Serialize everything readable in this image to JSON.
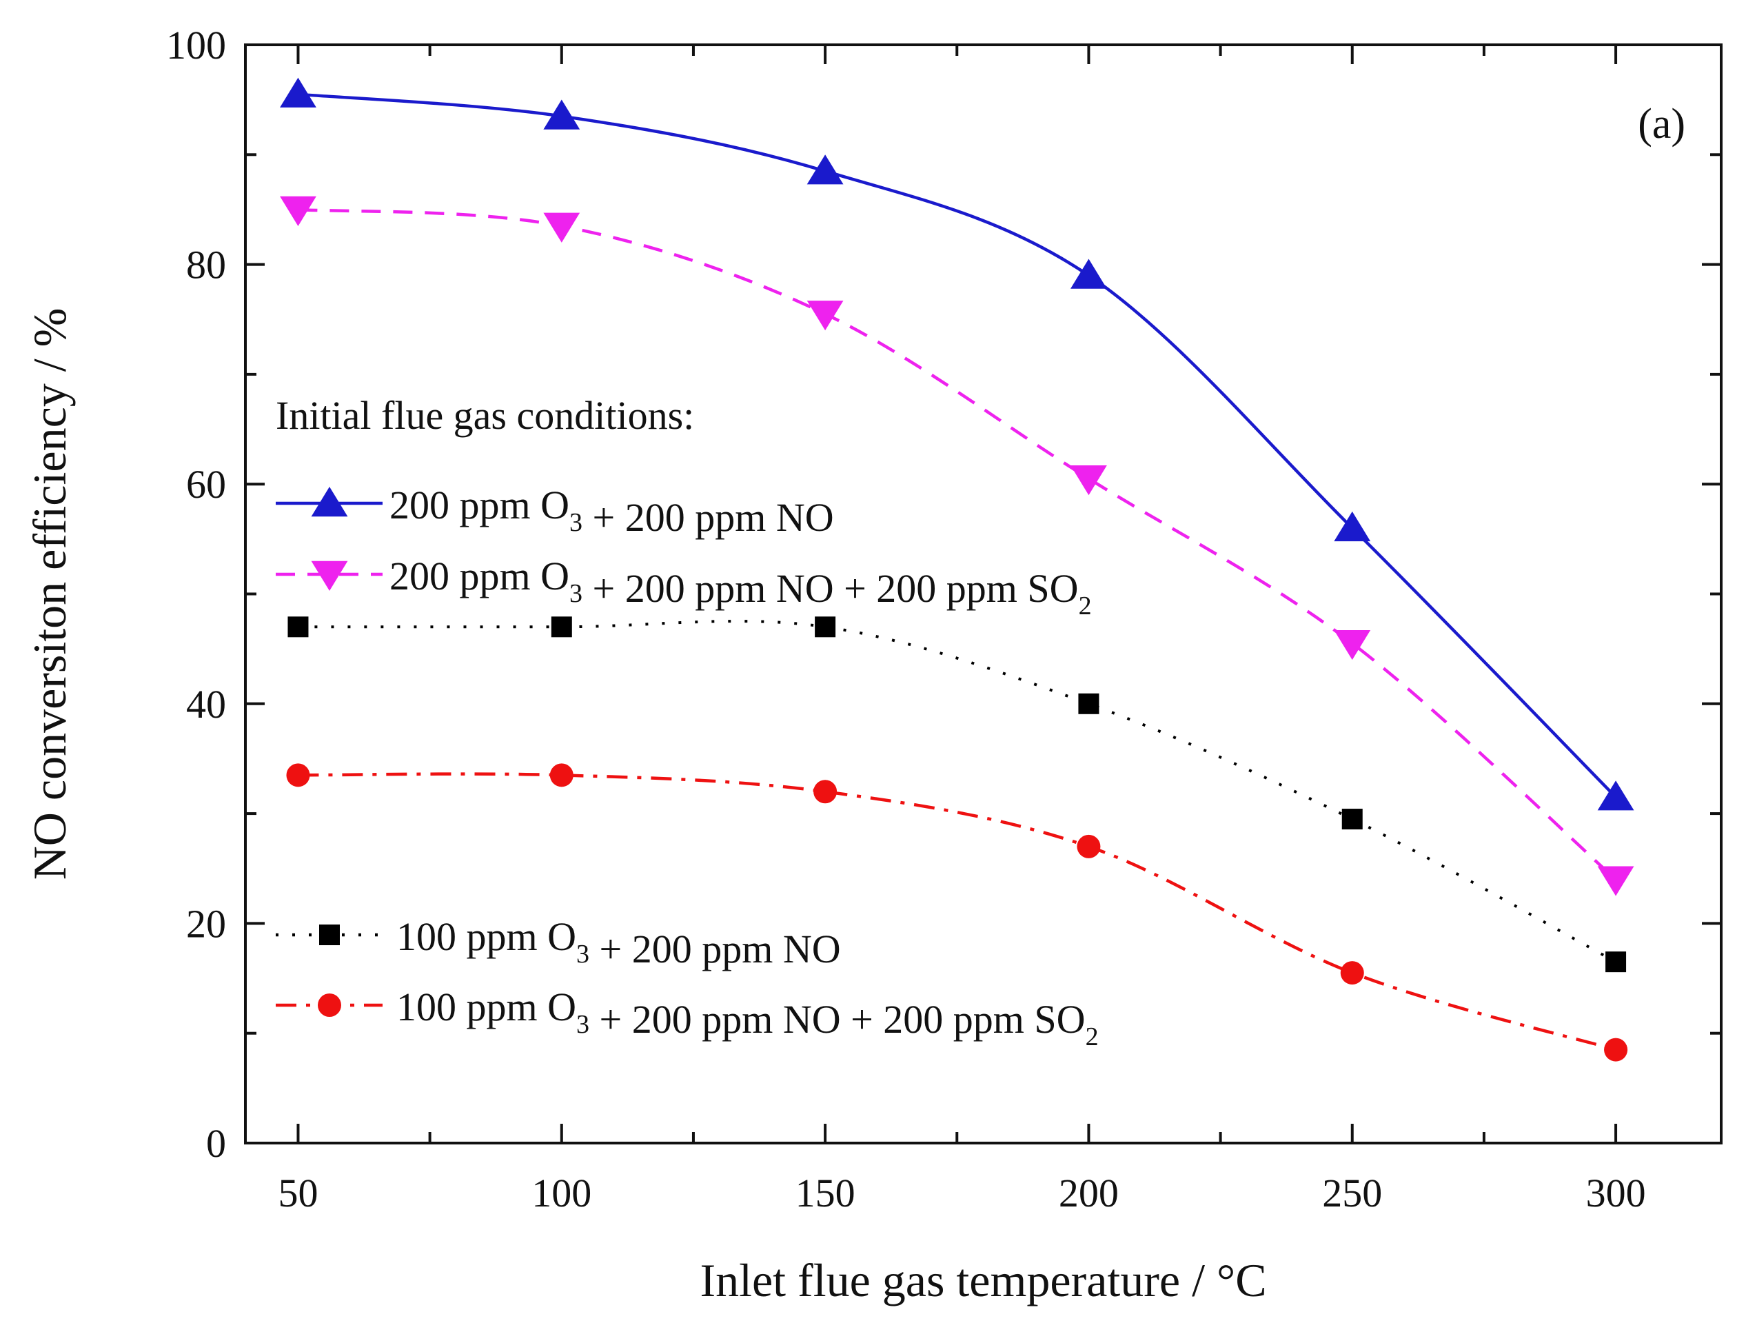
{
  "chart_data": {
    "type": "line",
    "panel_label": "(a)",
    "xlabel": "Inlet flue gas temperature / °C",
    "ylabel": "NO conversiton efficiency / %",
    "xlim": [
      40,
      320
    ],
    "ylim": [
      0,
      100
    ],
    "x_ticks": [
      50,
      100,
      150,
      200,
      250,
      300
    ],
    "x_minor_ticks": [
      75,
      125,
      175,
      225,
      275
    ],
    "y_ticks": [
      0,
      20,
      40,
      60,
      80,
      100
    ],
    "y_minor_ticks": [
      10,
      30,
      50,
      70,
      90
    ],
    "x": [
      50,
      100,
      150,
      200,
      250,
      300
    ],
    "legend_title": "Initial flue gas conditions:",
    "series": [
      {
        "name": "200 ppm O3 + 200 ppm NO",
        "label_parts": [
          [
            "200 ppm O",
            false
          ],
          [
            "3",
            true
          ],
          [
            " + 200 ppm NO",
            false
          ]
        ],
        "values": [
          95.5,
          93.5,
          88.5,
          79,
          56,
          31.5
        ],
        "color": "#1a1acc",
        "marker": "triangle-up",
        "linestyle": "solid"
      },
      {
        "name": "200 ppm O3 + 200 ppm NO + 200 ppm SO2",
        "label_parts": [
          [
            "200 ppm O",
            false
          ],
          [
            "3",
            true
          ],
          [
            " + 200 ppm NO + 200 ppm SO",
            false
          ],
          [
            "2",
            true
          ]
        ],
        "values": [
          85,
          83.5,
          75.5,
          60.5,
          45.5,
          24
        ],
        "color": "#ee22ee",
        "marker": "triangle-down",
        "linestyle": "dashed"
      },
      {
        "name": "100 ppm O3 + 200 ppm NO",
        "label_parts": [
          [
            "100 ppm O",
            false
          ],
          [
            "3",
            true
          ],
          [
            " + 200 ppm NO",
            false
          ]
        ],
        "values": [
          47,
          47,
          47,
          40,
          29.5,
          16.5
        ],
        "color": "#000000",
        "marker": "square",
        "linestyle": "dotted"
      },
      {
        "name": "100 ppm O3 + 200 ppm NO + 200 ppm SO2",
        "label_parts": [
          [
            "100 ppm O",
            false
          ],
          [
            "3",
            true
          ],
          [
            " + 200 ppm NO + 200 ppm SO",
            false
          ],
          [
            "2",
            true
          ]
        ],
        "values": [
          33.5,
          33.5,
          32,
          27,
          15.5,
          8.5
        ],
        "color": "#ee1111",
        "marker": "circle",
        "linestyle": "dashdot"
      }
    ]
  }
}
